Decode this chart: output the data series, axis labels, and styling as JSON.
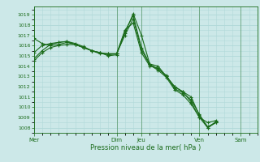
{
  "xlabel": "Pression niveau de la mer( hPa )",
  "bg_color": "#cce8e8",
  "grid_color": "#b0d8d8",
  "line_color": "#1a6b1a",
  "ylim": [
    1007.5,
    1019.8
  ],
  "yticks": [
    1008,
    1009,
    1010,
    1011,
    1012,
    1013,
    1014,
    1015,
    1016,
    1017,
    1018,
    1019
  ],
  "day_labels": [
    "Mer",
    "Dim",
    "Jeu",
    "Ven",
    "Sam"
  ],
  "day_positions": [
    0,
    60,
    78,
    120,
    150
  ],
  "xlim": [
    0,
    162
  ],
  "series": [
    {
      "x": [
        0,
        6,
        12,
        18,
        24,
        30,
        36,
        42,
        48,
        54,
        60,
        66,
        72,
        78,
        84,
        90,
        96,
        102,
        108,
        114,
        120,
        126,
        132
      ],
      "y": [
        1014.5,
        1015.3,
        1015.8,
        1016.0,
        1016.1,
        1016.1,
        1015.8,
        1015.5,
        1015.2,
        1015.2,
        1015.2,
        1017.2,
        1019.1,
        1017.0,
        1014.2,
        1014.0,
        1013.0,
        1012.0,
        1011.5,
        1010.5,
        1009.0,
        1008.5,
        1008.7
      ]
    },
    {
      "x": [
        0,
        6,
        12,
        18,
        24,
        30,
        36,
        42,
        48,
        54,
        60,
        66,
        72,
        78,
        84,
        90,
        96,
        102,
        108,
        114,
        120,
        126,
        132
      ],
      "y": [
        1016.7,
        1016.2,
        1016.0,
        1016.1,
        1016.3,
        1016.1,
        1015.8,
        1015.5,
        1015.3,
        1015.2,
        1015.2,
        1017.5,
        1018.2,
        1015.3,
        1014.0,
        1013.8,
        1013.0,
        1012.0,
        1011.5,
        1011.0,
        1009.2,
        1008.1,
        1008.5
      ]
    },
    {
      "x": [
        0,
        6,
        12,
        18,
        24,
        30,
        36,
        42,
        48,
        54,
        60,
        66,
        72,
        78,
        84,
        90,
        96,
        102,
        108,
        114,
        120,
        126,
        132
      ],
      "y": [
        1015.3,
        1016.0,
        1016.2,
        1016.3,
        1016.4,
        1016.2,
        1015.9,
        1015.5,
        1015.3,
        1015.0,
        1015.1,
        1017.4,
        1018.9,
        1015.8,
        1014.2,
        1013.7,
        1013.1,
        1011.8,
        1011.4,
        1010.7,
        1009.3,
        1008.0,
        1008.6
      ]
    },
    {
      "x": [
        0,
        6,
        12,
        18,
        24,
        30,
        36,
        42,
        48,
        54,
        60,
        66,
        72,
        78,
        84,
        90,
        96,
        102,
        108,
        114,
        120,
        126,
        132
      ],
      "y": [
        1014.7,
        1015.5,
        1016.1,
        1016.3,
        1016.4,
        1016.1,
        1015.8,
        1015.5,
        1015.3,
        1015.1,
        1015.2,
        1017.0,
        1018.6,
        1015.6,
        1014.1,
        1013.6,
        1012.9,
        1011.7,
        1011.2,
        1010.3,
        1009.0,
        1008.0,
        1008.5
      ]
    }
  ]
}
